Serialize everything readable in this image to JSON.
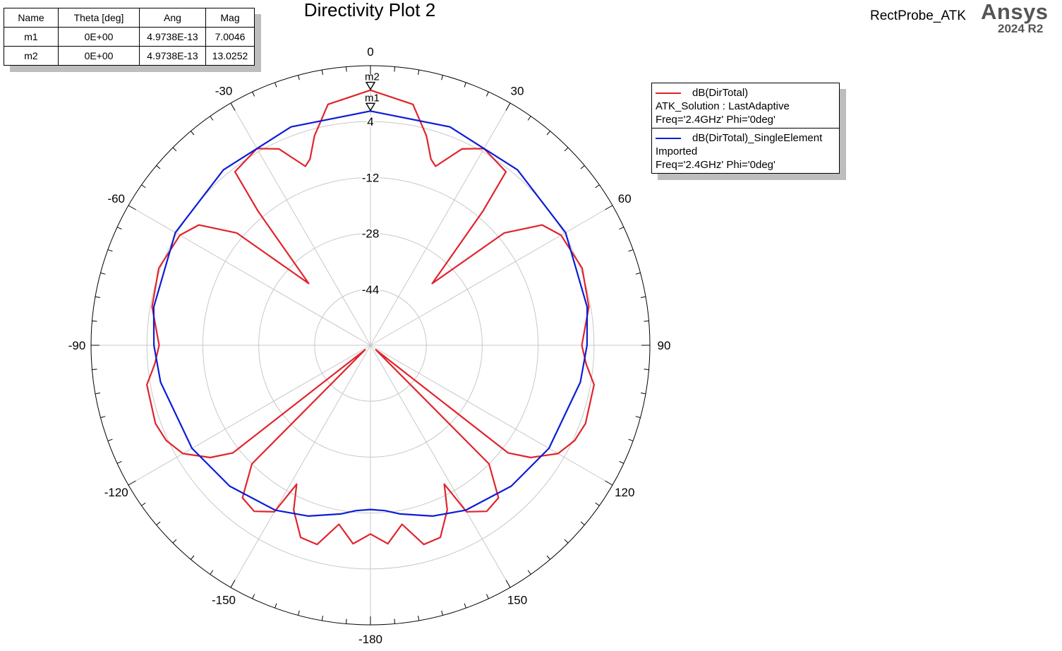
{
  "chart_data": {
    "type": "polar",
    "title": "Directivity Plot 2",
    "radial_ticks": [
      -44,
      -28,
      -12,
      4
    ],
    "radial_range": [
      -60,
      20
    ],
    "angle_ticks": [
      0,
      30,
      60,
      90,
      120,
      150,
      -180,
      -150,
      -120,
      -90,
      -60,
      -30
    ],
    "series": [
      {
        "name": "dB(DirTotal)",
        "source": "ATK_Solution : LastAdaptive",
        "condition": "Freq='2.4GHz' Phi='0deg'",
        "color": "#e0242c",
        "theta": [
          0,
          10,
          15,
          18,
          20,
          25,
          30,
          38,
          40,
          45,
          50,
          55,
          60,
          70,
          80,
          90,
          95,
          100,
          110,
          115,
          120,
          125,
          128,
          130,
          135,
          140,
          145,
          150,
          152,
          155,
          160,
          165,
          170,
          175,
          180,
          -175,
          -170,
          -165,
          -160,
          -155,
          -152,
          -150,
          -145,
          -140,
          -135,
          -130,
          -128,
          -125,
          -120,
          -115,
          -110,
          -100,
          -95,
          -90,
          -80,
          -70,
          -60,
          -55,
          -50,
          -45,
          -40,
          -38,
          -30,
          -25,
          -20,
          -18,
          -15,
          -10,
          0
        ],
        "r": [
          13.0,
          10.0,
          2.0,
          -4.0,
          -5.5,
          2.0,
          5.0,
          3.0,
          -10.0,
          -35.0,
          -10.0,
          0.0,
          3.0,
          4.5,
          3.5,
          0.5,
          2.0,
          5.0,
          5.5,
          4.5,
          2.0,
          -4.0,
          -10.0,
          -58.0,
          -12.0,
          -3.0,
          -2.0,
          -5.0,
          -15.0,
          -8.0,
          -1.5,
          -1.0,
          -8.0,
          -3.0,
          -6.0,
          -3.0,
          -8.0,
          -1.0,
          -1.5,
          -8.0,
          -15.0,
          -5.0,
          -2.0,
          -3.0,
          -12.0,
          -58.0,
          -10.0,
          -4.0,
          2.0,
          4.5,
          5.5,
          5.0,
          2.0,
          0.5,
          3.5,
          4.5,
          3.0,
          0.0,
          -10.0,
          -35.0,
          -10.0,
          3.0,
          5.0,
          2.0,
          -5.5,
          -4.0,
          2.0,
          10.0,
          13.0
        ]
      },
      {
        "name": "dB(DirTotal)_SingleElement",
        "source": "Imported",
        "condition": "Freq='2.4GHz' Phi='0deg'",
        "color": "#0b1dd6",
        "theta": [
          0,
          20,
          40,
          60,
          80,
          90,
          100,
          120,
          135,
          150,
          160,
          170,
          175,
          180,
          -175,
          -170,
          -160,
          -150,
          -135,
          -120,
          -100,
          -90,
          -80,
          -60,
          -40,
          -20,
          0
        ],
        "r": [
          7.0,
          6.5,
          5.5,
          4.5,
          3.0,
          2.0,
          1.0,
          -1.0,
          -3.0,
          -5.5,
          -8.0,
          -11.0,
          -12.5,
          -13.0,
          -12.5,
          -11.0,
          -8.0,
          -5.5,
          -3.0,
          -1.0,
          1.0,
          2.0,
          3.0,
          4.5,
          5.5,
          6.5,
          7.0
        ]
      }
    ],
    "markers": [
      {
        "name": "m1",
        "theta": "0E+00",
        "ang": "4.9738E-13",
        "mag": "7.0046",
        "theta_deg": 0,
        "value": 7.0046
      },
      {
        "name": "m2",
        "theta": "0E+00",
        "ang": "4.9738E-13",
        "mag": "13.0252",
        "theta_deg": 0,
        "value": 13.0252
      }
    ]
  },
  "marker_table": {
    "headers": [
      "Name",
      "Theta [deg]",
      "Ang",
      "Mag"
    ]
  },
  "header": {
    "project": "RectProbe_ATK",
    "brand": "Ansys",
    "version": "2024 R2"
  },
  "colors": {
    "grid": "#c8c8c8",
    "series1": "#e0242c",
    "series2": "#0b1dd6"
  }
}
